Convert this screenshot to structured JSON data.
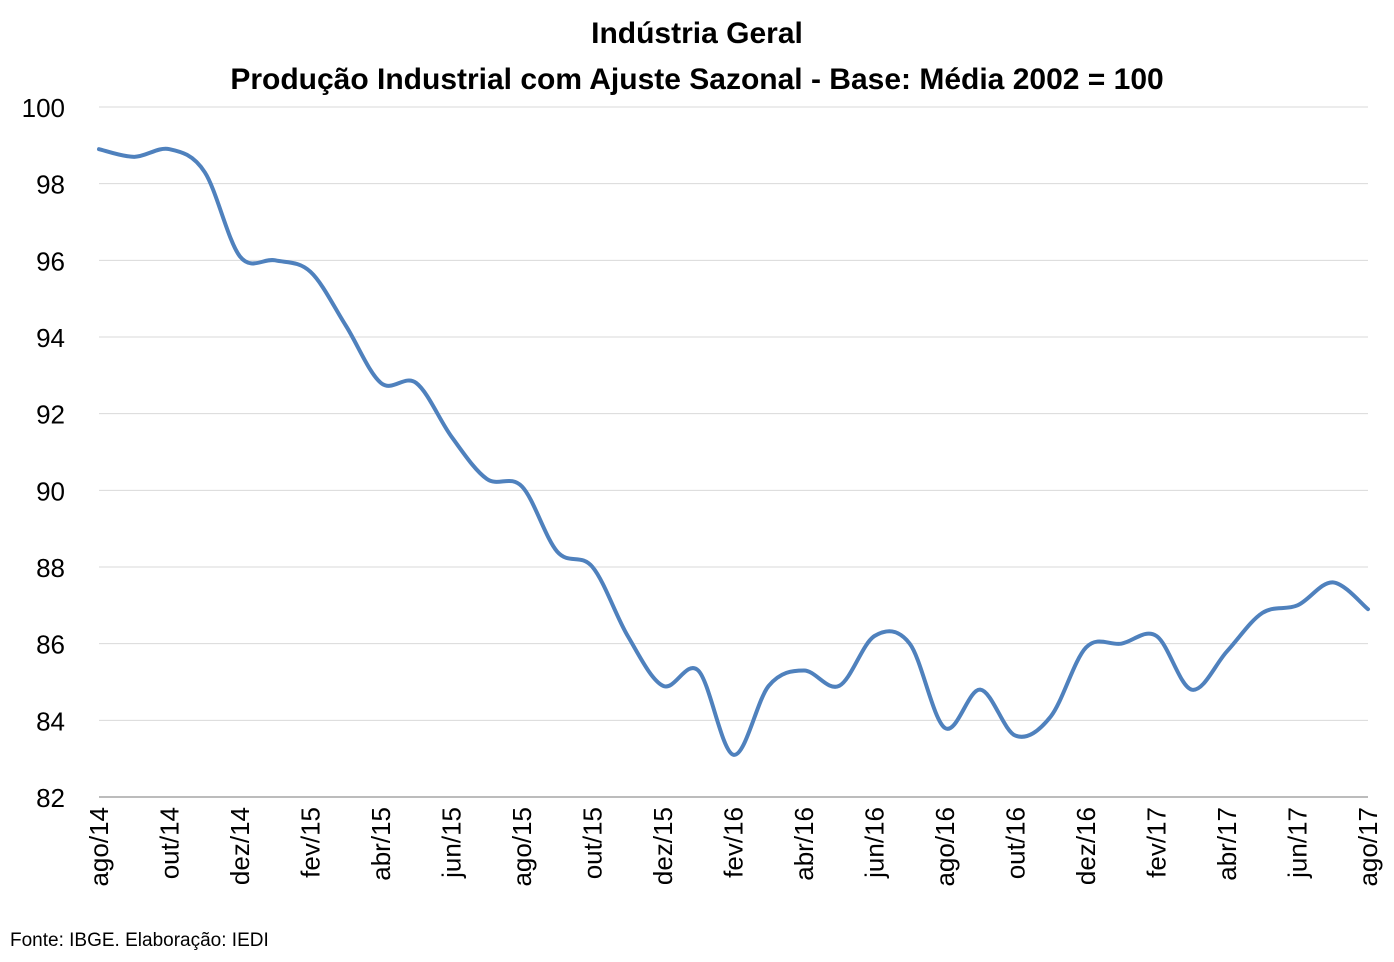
{
  "chart_data": {
    "type": "line",
    "title": "Indústria Geral",
    "subtitle": "Produção Industrial com Ajuste Sazonal - Base: Média 2002 = 100",
    "xlabel": "",
    "ylabel": "",
    "ylim": [
      82,
      100
    ],
    "y_ticks": [
      "100",
      "98",
      "96",
      "94",
      "92",
      "90",
      "88",
      "86",
      "84",
      "82"
    ],
    "grid": "horizontal",
    "legend": "none",
    "x": [
      "ago/14",
      "set/14",
      "out/14",
      "nov/14",
      "dez/14",
      "jan/15",
      "fev/15",
      "mar/15",
      "abr/15",
      "mai/15",
      "jun/15",
      "jul/15",
      "ago/15",
      "set/15",
      "out/15",
      "nov/15",
      "dez/15",
      "jan/16",
      "fev/16",
      "mar/16",
      "abr/16",
      "mai/16",
      "jun/16",
      "jul/16",
      "ago/16",
      "set/16",
      "out/16",
      "nov/16",
      "dez/16",
      "jan/17",
      "fev/17",
      "mar/17",
      "abr/17",
      "mai/17",
      "jun/17",
      "jul/17",
      "ago/17"
    ],
    "x_tick_labels": [
      "ago/14",
      "out/14",
      "dez/14",
      "fev/15",
      "abr/15",
      "jun/15",
      "ago/15",
      "out/15",
      "dez/15",
      "fev/16",
      "abr/16",
      "jun/16",
      "ago/16",
      "out/16",
      "dez/16",
      "fev/17",
      "abr/17",
      "jun/17",
      "ago/17"
    ],
    "series": [
      {
        "color": "#4F81BD",
        "values": [
          98.9,
          98.7,
          98.9,
          98.3,
          96.1,
          96.0,
          95.7,
          94.3,
          92.8,
          92.8,
          91.4,
          90.3,
          90.1,
          88.4,
          88.0,
          86.2,
          84.9,
          85.3,
          83.1,
          84.9,
          85.3,
          84.9,
          86.2,
          86.0,
          83.8,
          84.8,
          83.6,
          84.1,
          85.9,
          86.0,
          86.2,
          84.8,
          85.8,
          86.8,
          87.0,
          87.6,
          86.9
        ]
      }
    ]
  },
  "source": "Fonte: IBGE. Elaboração: IEDI"
}
